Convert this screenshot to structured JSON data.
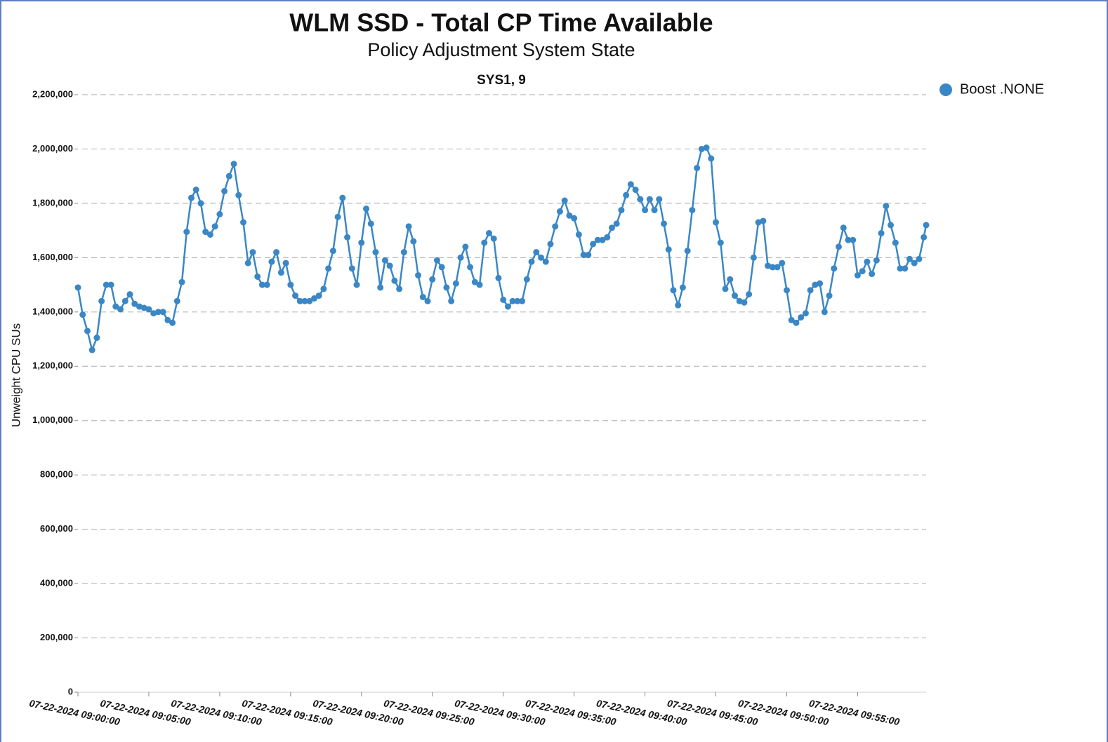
{
  "chart_data": {
    "type": "line",
    "title": "WLM SSD - Total CP Time Available",
    "subtitle": "Policy Adjustment System State",
    "annotation": "SYS1, 9",
    "y_label": "Unweight CPU SUs",
    "legend": "top-right",
    "grid": true,
    "ylim": [
      0,
      2200000
    ],
    "yticks": [
      {
        "value": 0,
        "label": "0"
      },
      {
        "value": 200000,
        "label": "200,000"
      },
      {
        "value": 400000,
        "label": "400,000"
      },
      {
        "value": 600000,
        "label": "600,000"
      },
      {
        "value": 800000,
        "label": "800,000"
      },
      {
        "value": 1000000,
        "label": "1,000,000"
      },
      {
        "value": 1200000,
        "label": "1,200,000"
      },
      {
        "value": 1400000,
        "label": "1,400,000"
      },
      {
        "value": 1600000,
        "label": "1,600,000"
      },
      {
        "value": 1800000,
        "label": "1,800,000"
      },
      {
        "value": 2000000,
        "label": "2,000,000"
      },
      {
        "value": 2200000,
        "label": "2,200,000"
      }
    ],
    "xlim": [
      "07-22-2024 09:00:00",
      "07-22-2024 09:59:50"
    ],
    "xticks": [
      "07-22-2024 09:00:00",
      "07-22-2024 09:05:00",
      "07-22-2024 09:10:00",
      "07-22-2024 09:15:00",
      "07-22-2024 09:20:00",
      "07-22-2024 09:25:00",
      "07-22-2024 09:30:00",
      "07-22-2024 09:35:00",
      "07-22-2024 09:40:00",
      "07-22-2024 09:45:00",
      "07-22-2024 09:50:00",
      "07-22-2024 09:55:00"
    ],
    "x": [
      "07-22-2024 09:00:00",
      "07-22-2024 09:00:20",
      "07-22-2024 09:00:40",
      "07-22-2024 09:01:00",
      "07-22-2024 09:01:20",
      "07-22-2024 09:01:40",
      "07-22-2024 09:02:00",
      "07-22-2024 09:02:20",
      "07-22-2024 09:02:40",
      "07-22-2024 09:03:00",
      "07-22-2024 09:03:20",
      "07-22-2024 09:03:40",
      "07-22-2024 09:04:00",
      "07-22-2024 09:04:20",
      "07-22-2024 09:04:40",
      "07-22-2024 09:05:00",
      "07-22-2024 09:05:20",
      "07-22-2024 09:05:40",
      "07-22-2024 09:06:00",
      "07-22-2024 09:06:20",
      "07-22-2024 09:06:40",
      "07-22-2024 09:07:00",
      "07-22-2024 09:07:20",
      "07-22-2024 09:07:40",
      "07-22-2024 09:08:00",
      "07-22-2024 09:08:20",
      "07-22-2024 09:08:40",
      "07-22-2024 09:09:00",
      "07-22-2024 09:09:20",
      "07-22-2024 09:09:40",
      "07-22-2024 09:10:00",
      "07-22-2024 09:10:20",
      "07-22-2024 09:10:40",
      "07-22-2024 09:11:00",
      "07-22-2024 09:11:20",
      "07-22-2024 09:11:40",
      "07-22-2024 09:12:00",
      "07-22-2024 09:12:20",
      "07-22-2024 09:12:40",
      "07-22-2024 09:13:00",
      "07-22-2024 09:13:20",
      "07-22-2024 09:13:40",
      "07-22-2024 09:14:00",
      "07-22-2024 09:14:20",
      "07-22-2024 09:14:40",
      "07-22-2024 09:15:00",
      "07-22-2024 09:15:20",
      "07-22-2024 09:15:40",
      "07-22-2024 09:16:00",
      "07-22-2024 09:16:20",
      "07-22-2024 09:16:40",
      "07-22-2024 09:17:00",
      "07-22-2024 09:17:20",
      "07-22-2024 09:17:40",
      "07-22-2024 09:18:00",
      "07-22-2024 09:18:20",
      "07-22-2024 09:18:40",
      "07-22-2024 09:19:00",
      "07-22-2024 09:19:20",
      "07-22-2024 09:19:40",
      "07-22-2024 09:20:00",
      "07-22-2024 09:20:20",
      "07-22-2024 09:20:40",
      "07-22-2024 09:21:00",
      "07-22-2024 09:21:20",
      "07-22-2024 09:21:40",
      "07-22-2024 09:22:00",
      "07-22-2024 09:22:20",
      "07-22-2024 09:22:40",
      "07-22-2024 09:23:00",
      "07-22-2024 09:23:20",
      "07-22-2024 09:23:40",
      "07-22-2024 09:24:00",
      "07-22-2024 09:24:20",
      "07-22-2024 09:24:40",
      "07-22-2024 09:25:00",
      "07-22-2024 09:25:20",
      "07-22-2024 09:25:40",
      "07-22-2024 09:26:00",
      "07-22-2024 09:26:20",
      "07-22-2024 09:26:40",
      "07-22-2024 09:27:00",
      "07-22-2024 09:27:20",
      "07-22-2024 09:27:40",
      "07-22-2024 09:28:00",
      "07-22-2024 09:28:20",
      "07-22-2024 09:28:40",
      "07-22-2024 09:29:00",
      "07-22-2024 09:29:20",
      "07-22-2024 09:29:40",
      "07-22-2024 09:30:00",
      "07-22-2024 09:30:20",
      "07-22-2024 09:30:40",
      "07-22-2024 09:31:00",
      "07-22-2024 09:31:20",
      "07-22-2024 09:31:40",
      "07-22-2024 09:32:00",
      "07-22-2024 09:32:20",
      "07-22-2024 09:32:40",
      "07-22-2024 09:33:00",
      "07-22-2024 09:33:20",
      "07-22-2024 09:33:40",
      "07-22-2024 09:34:00",
      "07-22-2024 09:34:20",
      "07-22-2024 09:34:40",
      "07-22-2024 09:35:00",
      "07-22-2024 09:35:20",
      "07-22-2024 09:35:40",
      "07-22-2024 09:36:00",
      "07-22-2024 09:36:20",
      "07-22-2024 09:36:40",
      "07-22-2024 09:37:00",
      "07-22-2024 09:37:20",
      "07-22-2024 09:37:40",
      "07-22-2024 09:38:00",
      "07-22-2024 09:38:20",
      "07-22-2024 09:38:40",
      "07-22-2024 09:39:00",
      "07-22-2024 09:39:20",
      "07-22-2024 09:39:40",
      "07-22-2024 09:40:00",
      "07-22-2024 09:40:20",
      "07-22-2024 09:40:40",
      "07-22-2024 09:41:00",
      "07-22-2024 09:41:20",
      "07-22-2024 09:41:40",
      "07-22-2024 09:42:00",
      "07-22-2024 09:42:20",
      "07-22-2024 09:42:40",
      "07-22-2024 09:43:00",
      "07-22-2024 09:43:20",
      "07-22-2024 09:43:40",
      "07-22-2024 09:44:00",
      "07-22-2024 09:44:20",
      "07-22-2024 09:44:40",
      "07-22-2024 09:45:00",
      "07-22-2024 09:45:20",
      "07-22-2024 09:45:40",
      "07-22-2024 09:46:00",
      "07-22-2024 09:46:20",
      "07-22-2024 09:46:40",
      "07-22-2024 09:47:00",
      "07-22-2024 09:47:20",
      "07-22-2024 09:47:40",
      "07-22-2024 09:48:00",
      "07-22-2024 09:48:20",
      "07-22-2024 09:48:40",
      "07-22-2024 09:49:00",
      "07-22-2024 09:49:20",
      "07-22-2024 09:49:40",
      "07-22-2024 09:50:00",
      "07-22-2024 09:50:20",
      "07-22-2024 09:50:40",
      "07-22-2024 09:51:00",
      "07-22-2024 09:51:20",
      "07-22-2024 09:51:40",
      "07-22-2024 09:52:00",
      "07-22-2024 09:52:20",
      "07-22-2024 09:52:40",
      "07-22-2024 09:53:00",
      "07-22-2024 09:53:20",
      "07-22-2024 09:53:40",
      "07-22-2024 09:54:00",
      "07-22-2024 09:54:20",
      "07-22-2024 09:54:40",
      "07-22-2024 09:55:00",
      "07-22-2024 09:55:20",
      "07-22-2024 09:55:40",
      "07-22-2024 09:56:00",
      "07-22-2024 09:56:20",
      "07-22-2024 09:56:40",
      "07-22-2024 09:57:00",
      "07-22-2024 09:57:20",
      "07-22-2024 09:57:40",
      "07-22-2024 09:58:00",
      "07-22-2024 09:58:20",
      "07-22-2024 09:58:40",
      "07-22-2024 09:59:00",
      "07-22-2024 09:59:20",
      "07-22-2024 09:59:40",
      "07-22-2024 09:59:50"
    ],
    "series": [
      {
        "name": "Boost .NONE",
        "color": "#3a87c6",
        "values": [
          1490000,
          1390000,
          1330000,
          1260000,
          1305000,
          1440000,
          1500000,
          1500000,
          1420000,
          1410000,
          1440000,
          1465000,
          1430000,
          1420000,
          1415000,
          1410000,
          1395000,
          1400000,
          1400000,
          1370000,
          1360000,
          1440000,
          1510000,
          1695000,
          1820000,
          1850000,
          1800000,
          1695000,
          1685000,
          1715000,
          1760000,
          1845000,
          1900000,
          1945000,
          1830000,
          1730000,
          1580000,
          1620000,
          1530000,
          1500000,
          1500000,
          1585000,
          1620000,
          1545000,
          1580000,
          1500000,
          1460000,
          1440000,
          1440000,
          1440000,
          1450000,
          1460000,
          1485000,
          1560000,
          1625000,
          1750000,
          1820000,
          1675000,
          1560000,
          1500000,
          1655000,
          1780000,
          1725000,
          1620000,
          1490000,
          1590000,
          1570000,
          1515000,
          1485000,
          1620000,
          1715000,
          1660000,
          1535000,
          1455000,
          1440000,
          1520000,
          1590000,
          1565000,
          1490000,
          1440000,
          1505000,
          1600000,
          1640000,
          1565000,
          1510000,
          1500000,
          1655000,
          1690000,
          1670000,
          1525000,
          1445000,
          1420000,
          1440000,
          1440000,
          1440000,
          1520000,
          1585000,
          1620000,
          1600000,
          1585000,
          1650000,
          1715000,
          1770000,
          1810000,
          1755000,
          1745000,
          1685000,
          1610000,
          1610000,
          1650000,
          1665000,
          1665000,
          1675000,
          1710000,
          1725000,
          1775000,
          1830000,
          1870000,
          1850000,
          1815000,
          1775000,
          1815000,
          1775000,
          1815000,
          1725000,
          1630000,
          1480000,
          1425000,
          1490000,
          1625000,
          1775000,
          1930000,
          2000000,
          2005000,
          1965000,
          1730000,
          1655000,
          1485000,
          1520000,
          1460000,
          1440000,
          1435000,
          1465000,
          1600000,
          1730000,
          1735000,
          1570000,
          1565000,
          1565000,
          1580000,
          1480000,
          1370000,
          1360000,
          1380000,
          1395000,
          1480000,
          1500000,
          1505000,
          1400000,
          1460000,
          1560000,
          1640000,
          1710000,
          1665000,
          1665000,
          1535000,
          1550000,
          1585000,
          1540000,
          1590000,
          1690000,
          1790000,
          1720000,
          1655000,
          1560000,
          1560000,
          1595000,
          1580000,
          1595000,
          1675000,
          1720000
        ]
      }
    ]
  }
}
